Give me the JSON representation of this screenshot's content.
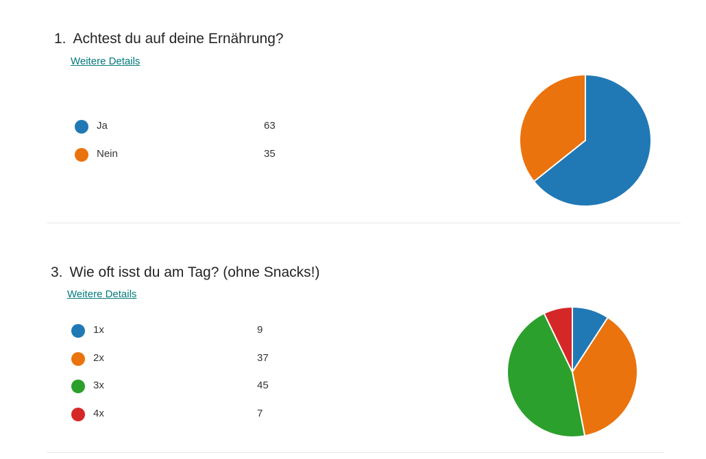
{
  "questions": [
    {
      "number": "1.",
      "title": "Achtest du auf deine Ernährung?",
      "details_link": "Weitere Details"
    },
    {
      "number": "3.",
      "title": "Wie oft isst du am Tag? (ohne Snacks!)",
      "details_link": "Weitere Details"
    }
  ],
  "chart_data": [
    {
      "type": "pie",
      "title": "Achtest du auf deine Ernährung?",
      "categories": [
        "Ja",
        "Nein"
      ],
      "values": [
        63,
        35
      ],
      "colors": [
        "#2079b5",
        "#ea730d"
      ],
      "legend": "left"
    },
    {
      "type": "pie",
      "title": "Wie oft isst du am Tag? (ohne Snacks!)",
      "categories": [
        "1x",
        "2x",
        "3x",
        "4x"
      ],
      "values": [
        9,
        37,
        45,
        7
      ],
      "colors": [
        "#2079b5",
        "#ea730d",
        "#2ca02c",
        "#d62728"
      ],
      "legend": "left"
    }
  ]
}
